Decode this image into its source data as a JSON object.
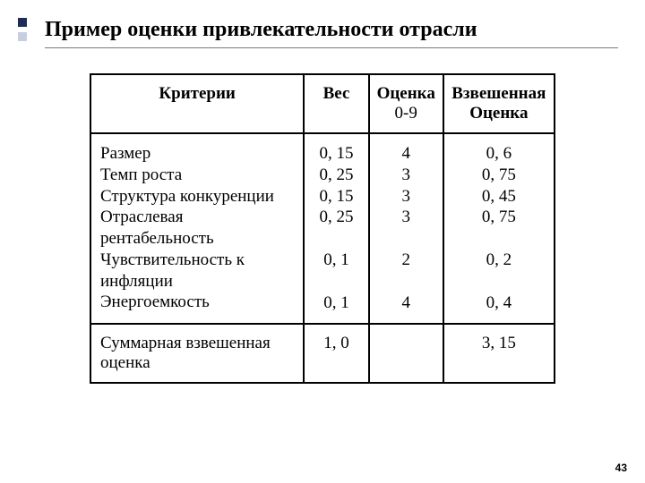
{
  "title": "Пример оценки  привлекательности  отрасли",
  "page_number": "43",
  "table": {
    "type": "table",
    "border_color": "#000000",
    "background_color": "#ffffff",
    "font_family": "Times New Roman",
    "header": {
      "criteria": "Критерии",
      "weight": "Вес",
      "score": "Оценка",
      "score_sub": "0-9",
      "weighted": "Взвешенная Оценка"
    },
    "criteria_cells": [
      "Размер",
      "Темп роста",
      "Структура конкуренции",
      "Отраслевая рентабельность",
      "Чувствительность к инфляции",
      "Энергоемкость"
    ],
    "weights": [
      "0, 15",
      "0, 25",
      "0, 15",
      "0, 25",
      "0, 1",
      "0, 1"
    ],
    "scores": [
      "4",
      "3",
      "3",
      "3",
      "2",
      "4"
    ],
    "weighted": [
      "0, 6",
      "0, 75",
      "0, 45",
      "0, 75",
      "0, 2",
      "0, 4"
    ],
    "total_row": {
      "label": "Суммарная взвешенная оценка",
      "weight": "1, 0",
      "score": "",
      "weighted": "3, 15"
    }
  }
}
